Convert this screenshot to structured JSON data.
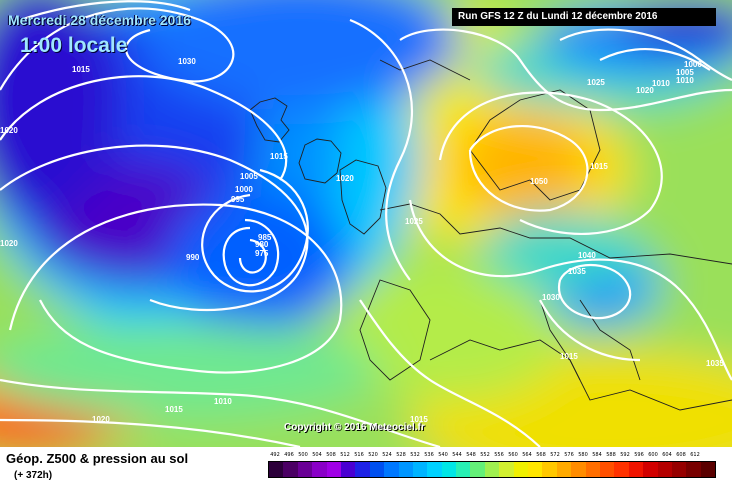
{
  "header": {
    "date": "Mercredi 28 décembre 2016",
    "time": "1:00 locale",
    "run": "Run GFS 12 Z du Lundi 12 décembre 2016"
  },
  "copyright": "Copyright © 2016 Meteociel.fr",
  "footer": {
    "title": "Géop. Z500 & pression au sol",
    "subtitle": "(+ 372h)"
  },
  "legend": {
    "labels": [
      "492",
      "496",
      "500",
      "504",
      "508",
      "512",
      "516",
      "520",
      "524",
      "528",
      "532",
      "536",
      "540",
      "544",
      "548",
      "552",
      "556",
      "560",
      "564",
      "568",
      "572",
      "576",
      "580",
      "584",
      "588",
      "592",
      "596",
      "600",
      "604",
      "608",
      "612"
    ],
    "colors": [
      "#2c003a",
      "#4b0064",
      "#6a0096",
      "#8a00c8",
      "#a000e6",
      "#4a00d2",
      "#1e22e6",
      "#0050f0",
      "#0078ff",
      "#0096ff",
      "#00b4ff",
      "#00d2ff",
      "#00e6e6",
      "#28f0b4",
      "#64f078",
      "#a0f050",
      "#d2f030",
      "#f0f000",
      "#ffe600",
      "#ffc800",
      "#ffaa00",
      "#ff8c00",
      "#ff6e00",
      "#ff5000",
      "#ff3200",
      "#f01400",
      "#d20000",
      "#b40000",
      "#960000",
      "#780000",
      "#5a0000"
    ]
  },
  "pressure_labels": [
    "1015",
    "1030",
    "1020",
    "1000",
    "1005",
    "1010",
    "1025",
    "1020",
    "1000",
    "1005",
    "1010",
    "1020",
    "1015",
    "1005",
    "1000",
    "995",
    "1020",
    "985",
    "980",
    "975",
    "990",
    "1025",
    "1015",
    "1050",
    "1040",
    "1035",
    "1030",
    "1015",
    "1035",
    "1020",
    "1015",
    "1010",
    "1015"
  ]
}
